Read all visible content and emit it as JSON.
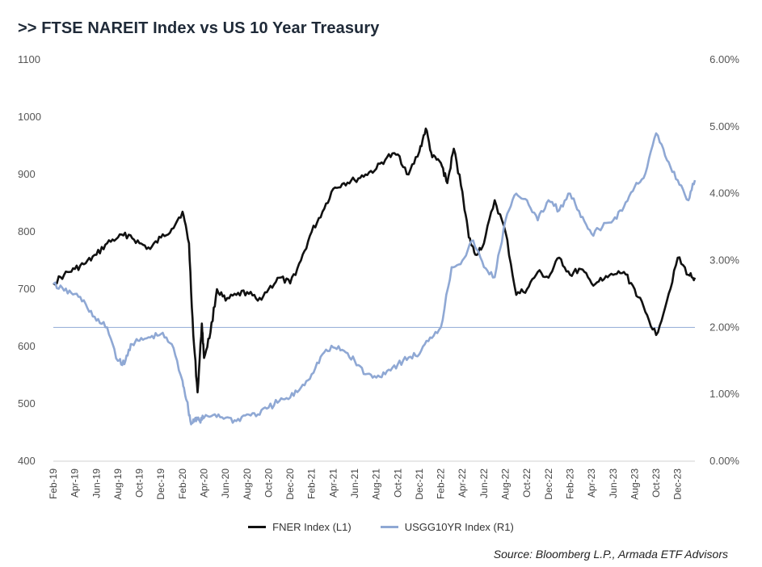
{
  "chart_data": {
    "type": "line",
    "title": ">> FTSE NAREIT Index vs US 10 Year Treasury",
    "source": "Source: Bloomberg L.P., Armada ETF Advisors",
    "x_ticks": [
      "Feb-19",
      "Apr-19",
      "Jun-19",
      "Aug-19",
      "Oct-19",
      "Dec-19",
      "Feb-20",
      "Apr-20",
      "Jun-20",
      "Aug-20",
      "Oct-20",
      "Dec-20",
      "Feb-21",
      "Apr-21",
      "Jun-21",
      "Aug-21",
      "Oct-21",
      "Dec-21",
      "Feb-22",
      "Apr-22",
      "Jun-22",
      "Aug-22",
      "Oct-22",
      "Dec-22",
      "Feb-23",
      "Apr-23",
      "Jun-23",
      "Aug-23",
      "Oct-23",
      "Dec-23"
    ],
    "y_left": {
      "ticks": [
        "400",
        "500",
        "600",
        "700",
        "800",
        "900",
        "1000",
        "1100"
      ],
      "lim": [
        400,
        1100
      ]
    },
    "y_right": {
      "ticks": [
        "0.00%",
        "1.00%",
        "2.00%",
        "3.00%",
        "4.00%",
        "5.00%",
        "6.00%"
      ],
      "lim": [
        0,
        6
      ]
    },
    "reference_line": {
      "axis": "right",
      "value": 2.0,
      "color": "#8fa8d4"
    },
    "series": [
      {
        "name": "FNER Index (L1)",
        "axis": "left",
        "color": "#111111",
        "x": [
          0,
          0.5,
          1,
          1.5,
          2,
          2.5,
          3,
          3.5,
          4,
          4.5,
          5,
          5.5,
          6,
          6.3,
          6.5,
          6.7,
          6.9,
          7,
          7.3,
          7.6,
          8,
          8.5,
          9,
          9.5,
          10,
          10.5,
          11,
          11.5,
          12,
          12.5,
          13,
          13.5,
          14,
          14.5,
          15,
          15.5,
          16,
          16.5,
          17,
          17.3,
          17.6,
          18,
          18.3,
          18.6,
          19,
          19.3,
          19.6,
          20,
          20.5,
          21,
          21.5,
          22,
          22.5,
          23,
          23.5,
          24,
          24.5,
          25,
          25.5,
          26,
          26.5,
          27,
          27.5,
          28,
          28.5,
          29,
          29.5,
          29.8
        ],
        "y": [
          710,
          725,
          735,
          745,
          760,
          780,
          790,
          795,
          780,
          770,
          790,
          805,
          835,
          780,
          620,
          520,
          640,
          580,
          625,
          700,
          680,
          690,
          695,
          680,
          700,
          720,
          710,
          750,
          800,
          835,
          875,
          885,
          890,
          900,
          910,
          930,
          935,
          900,
          940,
          980,
          930,
          920,
          885,
          945,
          870,
          790,
          760,
          780,
          855,
          800,
          690,
          700,
          730,
          720,
          755,
          725,
          735,
          710,
          715,
          725,
          730,
          700,
          660,
          620,
          680,
          755,
          725,
          720
        ],
        "values_are": "approximate, read off chart"
      },
      {
        "name": "USGG10YR Index (R1)",
        "axis": "right",
        "color": "#8fa8d4",
        "x": [
          0,
          0.5,
          1,
          1.5,
          2,
          2.5,
          3,
          3.3,
          3.6,
          4,
          4.5,
          5,
          5.5,
          6,
          6.2,
          6.4,
          6.6,
          6.8,
          7,
          7.5,
          8,
          8.5,
          9,
          9.5,
          10,
          10.5,
          11,
          11.5,
          12,
          12.5,
          13,
          13.5,
          14,
          14.5,
          15,
          15.5,
          16,
          16.5,
          17,
          17.5,
          18,
          18.5,
          19,
          19.5,
          20,
          20.5,
          21,
          21.5,
          22,
          22.5,
          23,
          23.5,
          24,
          24.5,
          25,
          25.5,
          26,
          26.5,
          27,
          27.5,
          28,
          28.5,
          29,
          29.5,
          29.8
        ],
        "y": [
          2.65,
          2.55,
          2.5,
          2.35,
          2.1,
          2.0,
          1.5,
          1.45,
          1.75,
          1.8,
          1.85,
          1.9,
          1.75,
          1.2,
          0.9,
          0.55,
          0.65,
          0.6,
          0.65,
          0.7,
          0.65,
          0.6,
          0.7,
          0.7,
          0.8,
          0.9,
          0.95,
          1.1,
          1.3,
          1.6,
          1.7,
          1.65,
          1.5,
          1.3,
          1.25,
          1.35,
          1.45,
          1.55,
          1.6,
          1.85,
          2.0,
          2.9,
          3.0,
          3.3,
          2.9,
          2.75,
          3.6,
          4.0,
          3.9,
          3.6,
          3.9,
          3.75,
          4.0,
          3.65,
          3.4,
          3.5,
          3.6,
          3.8,
          4.1,
          4.3,
          4.9,
          4.5,
          4.2,
          3.9,
          4.2
        ],
        "values_are": "approximate, read off chart"
      }
    ],
    "legend_position": "bottom-center",
    "grid": false
  }
}
